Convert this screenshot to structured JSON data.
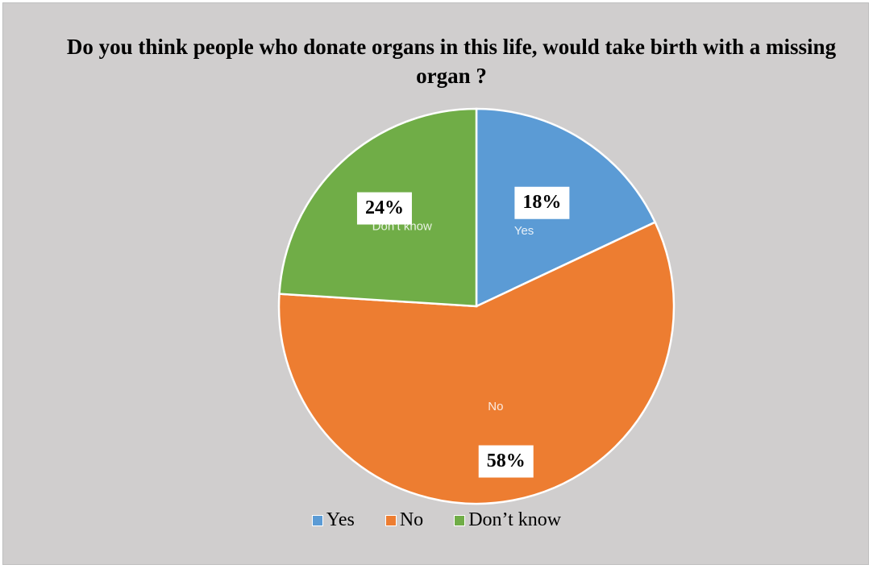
{
  "chart_data": {
    "type": "pie",
    "title": "Do you think people who donate organs in this life, would take birth with a missing organ ?",
    "categories": [
      "Yes",
      "No",
      "Don’t know"
    ],
    "values": [
      18,
      58,
      24
    ],
    "data_labels": [
      "18%",
      "58%",
      "24%"
    ],
    "colors": [
      "#5b9bd5",
      "#ed7d31",
      "#70ad47"
    ],
    "start_angle_deg": 0,
    "direction": "clockwise",
    "legend": "bottom"
  }
}
